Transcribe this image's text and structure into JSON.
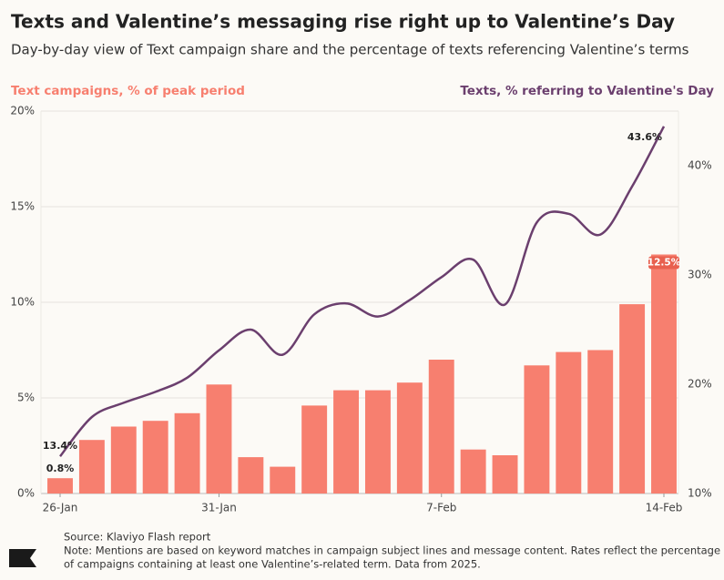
{
  "chart_data": {
    "type": "bar-line",
    "title": "Texts and Valentine’s messaging rise right up to Valentine’s Day",
    "subtitle": "Day-by-day view of Text campaign share and the percentage of texts referencing Valentine’s terms",
    "categories": [
      "26-Jan",
      null,
      null,
      null,
      null,
      "31-Jan",
      null,
      null,
      null,
      null,
      null,
      null,
      "7-Feb",
      null,
      null,
      null,
      null,
      null,
      null,
      "14-Feb"
    ],
    "series": [
      {
        "name": "Text campaigns, % of peak period",
        "type": "bar",
        "color": "#f77f6f",
        "values": [
          0.8,
          2.8,
          3.5,
          3.8,
          4.2,
          5.7,
          1.9,
          1.4,
          4.6,
          5.4,
          5.4,
          5.8,
          7.0,
          2.3,
          2.0,
          6.7,
          7.4,
          7.5,
          9.9,
          12.5
        ],
        "value_labels": [
          "0.8%",
          null,
          null,
          null,
          null,
          null,
          null,
          null,
          null,
          null,
          null,
          null,
          null,
          null,
          null,
          null,
          null,
          null,
          null,
          "12.5%"
        ]
      },
      {
        "name": "Texts, % referring to Valentine's Day",
        "type": "line",
        "axis": "y2",
        "color": "#6b3f6e",
        "values": [
          13.4,
          17.0,
          18.3,
          19.3,
          20.6,
          23.1,
          25.0,
          22.7,
          26.4,
          27.4,
          26.2,
          27.7,
          29.8,
          31.4,
          27.3,
          34.8,
          35.6,
          33.7,
          38.1,
          43.6
        ],
        "value_labels": [
          "13.4%",
          null,
          null,
          null,
          null,
          null,
          null,
          null,
          null,
          null,
          null,
          null,
          null,
          null,
          null,
          null,
          null,
          null,
          null,
          "43.6%"
        ]
      }
    ],
    "ylim": [
      0,
      20
    ],
    "yticks": [
      {
        "value": 0,
        "label": "0%"
      },
      {
        "value": 5,
        "label": "5%"
      },
      {
        "value": 10,
        "label": "10%"
      },
      {
        "value": 15,
        "label": "15%"
      },
      {
        "value": 20,
        "label": "20%"
      }
    ],
    "y2lim": [
      10,
      45
    ],
    "y2ticks": [
      {
        "value": 10,
        "label": "10%"
      },
      {
        "value": 20,
        "label": "20%"
      },
      {
        "value": 30,
        "label": "30%"
      },
      {
        "value": 40,
        "label": "40%"
      }
    ],
    "grid": true
  },
  "source": "Source: Klaviyo Flash report",
  "note": [
    "Note: Mentions are based on keyword matches in campaign subject lines and message content. Rates reflect the percentage",
    "of campaigns containing at least one Valentine’s-related term. Data from 2025."
  ]
}
